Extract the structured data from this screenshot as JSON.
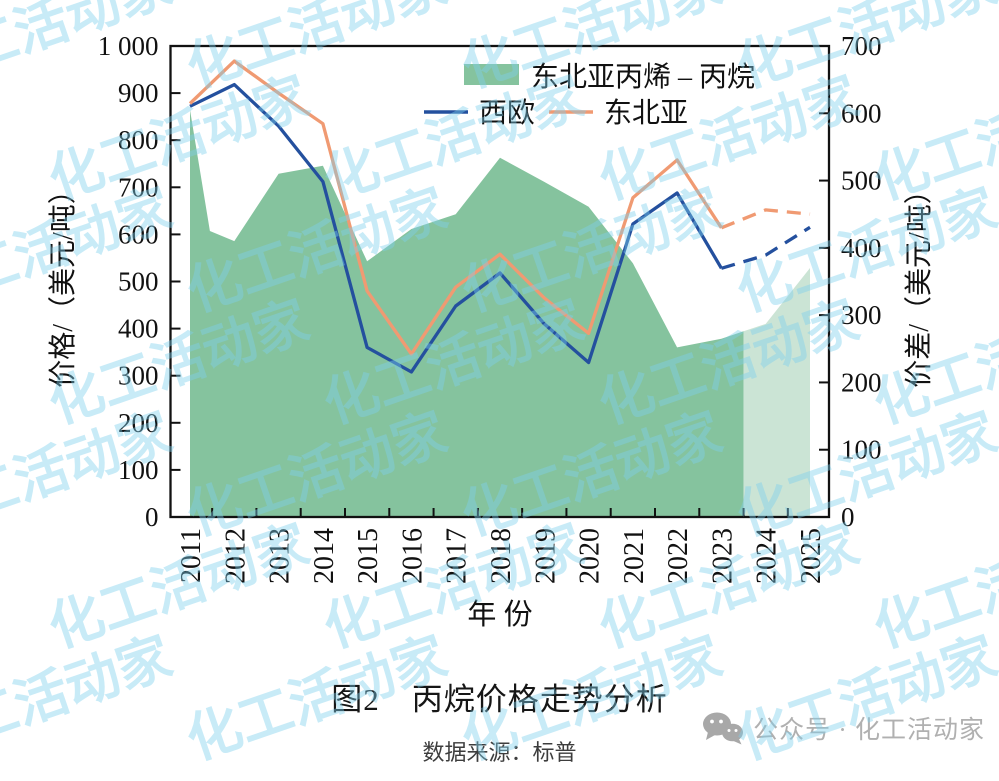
{
  "watermark": {
    "text": "化工活动家",
    "color": "#7ed0ee",
    "opacity": 0.42
  },
  "chart_data": {
    "type": "area+line combo, dual axis",
    "years": [
      2011,
      2012,
      2013,
      2014,
      2015,
      2016,
      2017,
      2018,
      2019,
      2020,
      2021,
      2022,
      2023,
      2024,
      2025
    ],
    "x_label": "年 份",
    "left_axis": {
      "label": "价格/（美元/吨）",
      "min": 0,
      "max": 1000,
      "step": 100,
      "max_label": "1 000"
    },
    "right_axis": {
      "label": "价差/（美元/吨）",
      "min": 0,
      "max": 700,
      "step": 100
    },
    "legend_position": "top-center-inside",
    "area_series": {
      "name": "东北亚丙烯 – 丙烷",
      "axis": "right",
      "color": "#85c39e",
      "forecast_color": "#cbe4d5",
      "forecast_start_x": 2023.5,
      "x": [
        2011,
        2011.45,
        2012,
        2013,
        2014,
        2015,
        2016,
        2017,
        2018,
        2019,
        2020,
        2021,
        2022,
        2023,
        2023.5,
        2024,
        2025
      ],
      "values": [
        605,
        425,
        410,
        510,
        522,
        380,
        428,
        450,
        534,
        498,
        461,
        377,
        252,
        265,
        276,
        287,
        370
      ]
    },
    "line_series": [
      {
        "name": "西欧",
        "axis": "left",
        "color": "#24509e",
        "dash_start_year": 2023,
        "values": [
          872,
          918,
          830,
          712,
          360,
          308,
          448,
          518,
          410,
          328,
          622,
          688,
          528,
          556,
          615
        ]
      },
      {
        "name": "东北亚",
        "axis": "left",
        "color": "#f09a72",
        "dash_start_year": 2023,
        "values": [
          878,
          968,
          900,
          835,
          480,
          346,
          488,
          558,
          465,
          390,
          678,
          758,
          614,
          652,
          643
        ]
      }
    ]
  },
  "caption": {
    "title": "图2　丙烷价格走势分析",
    "source": "数据来源：标普"
  },
  "badge": {
    "label": "公众号 · 化工活动家"
  }
}
